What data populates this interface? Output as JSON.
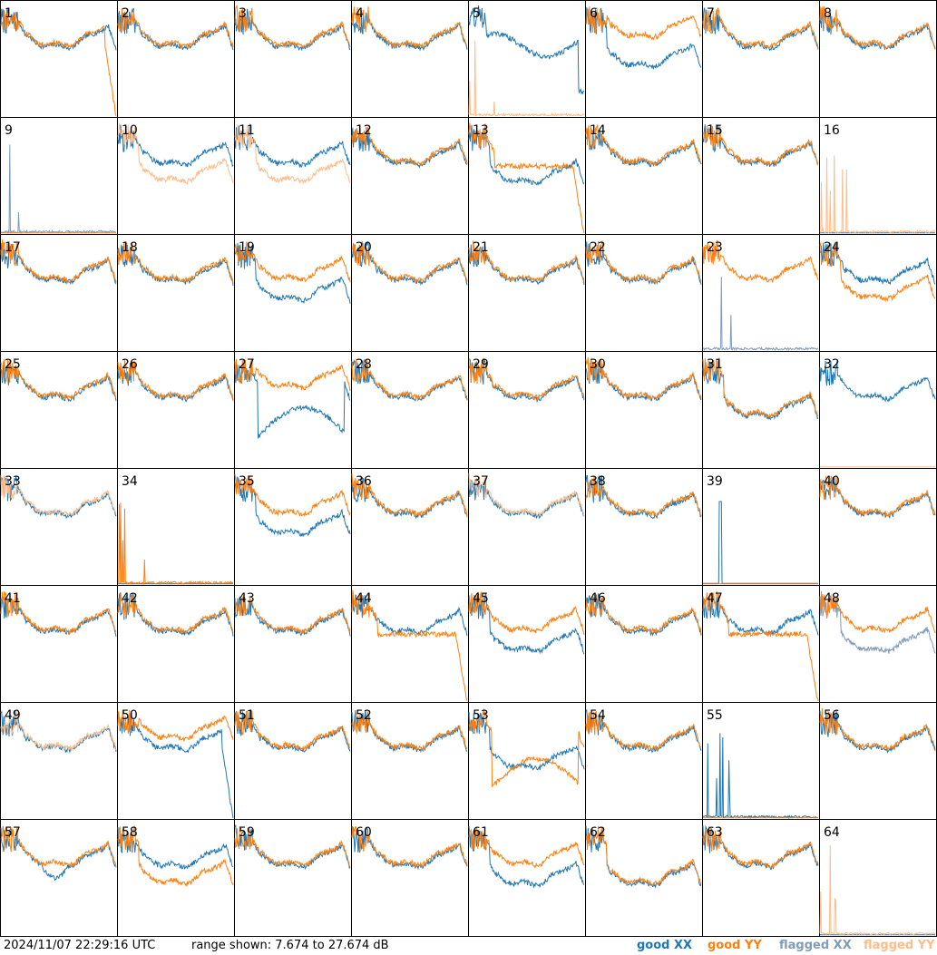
{
  "chart_data": {
    "type": "line",
    "panel_layout": {
      "rows": 8,
      "cols": 8
    },
    "panel_labels": [
      "1",
      "2",
      "3",
      "4",
      "5",
      "6",
      "7",
      "8",
      "9",
      "10",
      "11",
      "12",
      "13",
      "14",
      "15",
      "16",
      "17",
      "18",
      "19",
      "20",
      "21",
      "22",
      "23",
      "24",
      "25",
      "26",
      "27",
      "28",
      "29",
      "30",
      "31",
      "32",
      "33",
      "34",
      "35",
      "36",
      "37",
      "38",
      "39",
      "40",
      "41",
      "42",
      "43",
      "44",
      "45",
      "46",
      "47",
      "48",
      "49",
      "50",
      "51",
      "52",
      "53",
      "54",
      "55",
      "56",
      "57",
      "58",
      "59",
      "60",
      "61",
      "62",
      "63",
      "64"
    ],
    "y_range_db": [
      7.674,
      27.674
    ],
    "grid": false,
    "legend_position": "bottom-right",
    "series": [
      {
        "name": "good XX",
        "color": "#1f77b4"
      },
      {
        "name": "good YY",
        "color": "#ff7f0e"
      },
      {
        "name": "flagged XX",
        "color": "#7f9cb8"
      },
      {
        "name": "flagged YY",
        "color": "#ffbb88"
      }
    ],
    "panels": {
      "flagged_xx": [
        "9",
        "23",
        "48"
      ],
      "flagged_yy": [
        "5",
        "10",
        "11",
        "16",
        "32",
        "33",
        "37",
        "49",
        "64"
      ],
      "xx_variants": {
        "5": "drop",
        "6": "low",
        "9": "spiky",
        "13": "low",
        "16": "pure",
        "19": "low",
        "23": "spiky",
        "27": "hump",
        "31": "low",
        "34": "pure",
        "35": "low",
        "39": "spike",
        "45": "low",
        "48": "low",
        "50": "roll",
        "53": "low",
        "55": "spiky",
        "57": "dip",
        "61": "low",
        "62": "low",
        "64": "pure"
      },
      "yy_variants": {
        "1": "roll",
        "5": "spiky",
        "6": "high",
        "9": "pure",
        "10": "low",
        "11": "low",
        "13": "shelfroll",
        "16": "spiky",
        "24": "low",
        "27": "high",
        "31": "low",
        "32": "pure",
        "34": "spiky",
        "39": "pure",
        "44": "shelfroll",
        "47": "shelfroll",
        "50": "high",
        "53": "hump",
        "55": "pure",
        "58": "low",
        "62": "low",
        "64": "spiky"
      }
    }
  },
  "footer": {
    "timestamp": "2024/11/07 22:29:16 UTC",
    "range_text": "range shown: 7.674 to 27.674 dB",
    "legend": [
      "good XX",
      "good YY",
      "flagged XX",
      "flagged YY"
    ]
  }
}
